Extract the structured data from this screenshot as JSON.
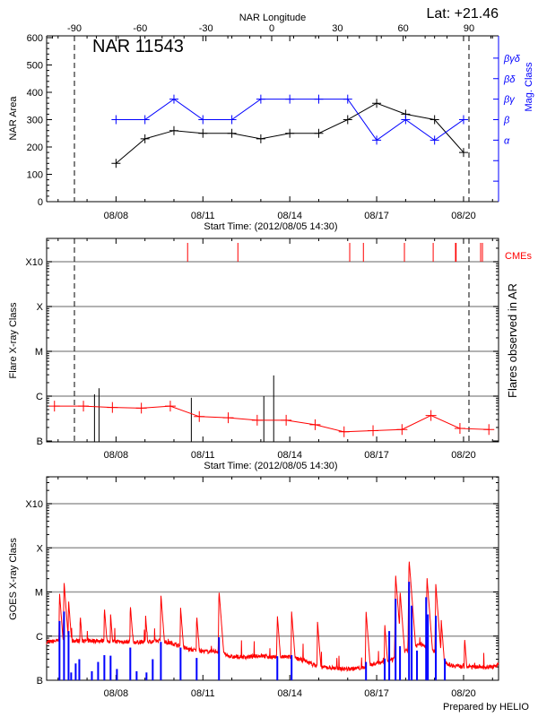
{
  "header": {
    "lat_label": "Lat: +21.46",
    "footer": "Prepared by HELIO"
  },
  "colors": {
    "area": "#000000",
    "mag_class": "#0000ff",
    "flares": "#ff0000",
    "cme": "#ff0000",
    "goes_long": "#ff0000",
    "goes_short": "#0000ff",
    "grid": "#999999"
  },
  "chart_data": [
    {
      "type": "line",
      "title": "NAR 11543",
      "xlabel": "Start Time: (2012/08/05 14:30)",
      "ylabel": "NAR Area",
      "y2label": "Mag. Class",
      "top_axis_label": "NAR Longitude",
      "top_axis_ticks": [
        "-90",
        "-60",
        "-30",
        "0",
        "30",
        "60",
        "90"
      ],
      "limb_longitudes": [
        -90,
        90
      ],
      "xlim": [
        "2012-08-05T14:30",
        "2012-08-21T05:00"
      ],
      "x_ticks": [
        "08/08",
        "08/11",
        "08/14",
        "08/17",
        "08/20"
      ],
      "x_tick_dates": [
        "2012-08-08T00:00",
        "2012-08-11T00:00",
        "2012-08-14T00:00",
        "2012-08-17T00:00",
        "2012-08-20T00:00"
      ],
      "ylim": [
        0,
        600
      ],
      "y_ticks": [
        "0",
        "100",
        "200",
        "300",
        "400",
        "500",
        "600"
      ],
      "y2_levels": [
        "",
        "",
        "α",
        "β",
        "βγ",
        "βδ",
        "βγδ"
      ],
      "x": [
        "2012-08-08T00:00",
        "2012-08-09T00:00",
        "2012-08-10T00:00",
        "2012-08-11T00:00",
        "2012-08-12T00:00",
        "2012-08-13T00:00",
        "2012-08-14T00:00",
        "2012-08-15T00:00",
        "2012-08-16T00:00",
        "2012-08-17T00:00",
        "2012-08-18T00:00",
        "2012-08-19T00:00",
        "2012-08-20T00:00"
      ],
      "series": [
        {
          "axis": "left",
          "color": "#000000",
          "values": [
            140,
            230,
            260,
            250,
            250,
            230,
            250,
            250,
            300,
            360,
            320,
            300,
            180
          ]
        },
        {
          "axis": "right",
          "color": "#0000ff",
          "values": [
            "β",
            "β",
            "βγ",
            "β",
            "β",
            "βγ",
            "βγ",
            "βγ",
            "βγ",
            "α",
            "β",
            "α",
            "β"
          ]
        }
      ],
      "grid": false
    },
    {
      "type": "line",
      "xlabel": "Start Time: (2012/08/05 14:30)",
      "ylabel": "Flare X-ray Class",
      "y2label": "Flares observed in AR",
      "cme_label": "CMEs",
      "yscale": "log",
      "xlim": [
        "2012-08-05T14:30",
        "2012-08-21T05:00"
      ],
      "x_ticks": [
        "08/08",
        "08/11",
        "08/14",
        "08/17",
        "08/20"
      ],
      "y_ticks": [
        "B",
        "C",
        "M",
        "X",
        "X10"
      ],
      "grid": true,
      "flare_class_series": {
        "x": [
          "2012-08-05T21:00",
          "2012-08-06T21:00",
          "2012-08-07T21:00",
          "2012-08-08T21:00",
          "2012-08-09T21:00",
          "2012-08-10T21:00",
          "2012-08-11T21:00",
          "2012-08-12T21:00",
          "2012-08-13T21:00",
          "2012-08-14T21:00",
          "2012-08-15T21:00",
          "2012-08-16T21:00",
          "2012-08-17T21:00",
          "2012-08-18T21:00",
          "2012-08-19T21:00",
          "2012-08-20T21:00"
        ],
        "values": [
          "B6.0",
          "B6.0",
          "B5.6",
          "B5.4",
          "B6.0",
          "B3.5",
          "B3.3",
          "B2.9",
          "B2.9",
          "B2.3",
          "B1.6",
          "B1.7",
          "B1.8",
          "B3.7",
          "B1.9",
          "B1.8"
        ]
      },
      "observed_flares": [
        {
          "time": "2012-08-07T06:10",
          "class": "C1.1"
        },
        {
          "time": "2012-08-07T09:55",
          "class": "C1.5"
        },
        {
          "time": "2012-08-10T14:25",
          "class": "B9.2"
        },
        {
          "time": "2012-08-13T02:30",
          "class": "C1.0"
        },
        {
          "time": "2012-08-13T10:40",
          "class": "C2.9"
        }
      ],
      "cme_times": [
        "2012-08-10T11:20",
        "2012-08-12T05:00",
        "2012-08-16T01:40",
        "2012-08-16T13:00",
        "2012-08-17T23:00",
        "2012-08-18T22:50",
        "2012-08-19T17:20",
        "2012-08-19T17:50",
        "2012-08-20T14:10",
        "2012-08-20T15:40"
      ]
    },
    {
      "type": "line",
      "ylabel": "GOES X-ray Class",
      "yscale": "log",
      "xlim": [
        "2012-08-05T14:30",
        "2012-08-21T05:00"
      ],
      "x_ticks": [
        "08/08",
        "08/11",
        "08/14",
        "08/17",
        "08/20"
      ],
      "y_ticks": [
        "B",
        "C",
        "M",
        "X",
        "X10"
      ],
      "grid": true,
      "long_channel_background": {
        "x": [
          "2012-08-05T14:30",
          "2012-08-06T00:00",
          "2012-08-06T12:00",
          "2012-08-07T00:00",
          "2012-08-07T12:00",
          "2012-08-08T00:00",
          "2012-08-08T12:00",
          "2012-08-09T00:00",
          "2012-08-09T12:00",
          "2012-08-10T00:00",
          "2012-08-10T12:00",
          "2012-08-11T00:00",
          "2012-08-11T12:00",
          "2012-08-12T00:00",
          "2012-08-12T12:00",
          "2012-08-13T00:00",
          "2012-08-13T12:00",
          "2012-08-14T00:00",
          "2012-08-14T12:00",
          "2012-08-15T00:00",
          "2012-08-15T12:00",
          "2012-08-16T00:00",
          "2012-08-16T12:00",
          "2012-08-17T00:00",
          "2012-08-17T12:00",
          "2012-08-18T00:00",
          "2012-08-18T12:00",
          "2012-08-19T00:00",
          "2012-08-19T12:00",
          "2012-08-20T00:00",
          "2012-08-20T12:00",
          "2012-08-21T00:00",
          "2012-08-21T05:00"
        ],
        "values": [
          "B6.5",
          "B7",
          "B7",
          "B7",
          "B7",
          "B6.8",
          "B6.5",
          "B6.5",
          "B7",
          "B6",
          "B4.5",
          "B4",
          "B4",
          "B3",
          "B3",
          "B3.2",
          "B3",
          "B3",
          "B2.5",
          "B1.8",
          "B1.7",
          "B1.6",
          "B1.7",
          "B2.2",
          "B2.5",
          "B4",
          "B6",
          "B4",
          "B2",
          "B1.8",
          "B1.8",
          "B1.8",
          "B2"
        ]
      },
      "long_channel_peaks": [
        {
          "time": "2012-08-06T01:10",
          "class": "C9.7"
        },
        {
          "time": "2012-08-06T04:55",
          "class": "M1.7"
        },
        {
          "time": "2012-08-06T08:40",
          "class": "C6.5"
        },
        {
          "time": "2012-08-06T18:20",
          "class": "C3.0"
        },
        {
          "time": "2012-08-07T14:20",
          "class": "C4.6"
        },
        {
          "time": "2012-08-07T19:30",
          "class": "C3.1"
        },
        {
          "time": "2012-08-08T11:50",
          "class": "C5.2"
        },
        {
          "time": "2012-08-09T00:30",
          "class": "C2.9"
        },
        {
          "time": "2012-08-09T13:10",
          "class": "C8.8"
        },
        {
          "time": "2012-08-10T05:30",
          "class": "C4.4"
        },
        {
          "time": "2012-08-10T18:50",
          "class": "C3.0"
        },
        {
          "time": "2012-08-11T13:20",
          "class": "M1.1"
        },
        {
          "time": "2012-08-13T13:40",
          "class": "C3.0"
        },
        {
          "time": "2012-08-14T01:30",
          "class": "C3.6"
        },
        {
          "time": "2012-08-14T23:00",
          "class": "C2.1"
        },
        {
          "time": "2012-08-16T15:10",
          "class": "C3.8"
        },
        {
          "time": "2012-08-17T06:40",
          "class": "C1.9"
        },
        {
          "time": "2012-08-17T15:40",
          "class": "M2.5"
        },
        {
          "time": "2012-08-17T19:20",
          "class": "M1.1"
        },
        {
          "time": "2012-08-18T02:50",
          "class": "M5.6"
        },
        {
          "time": "2012-08-18T17:40",
          "class": "M2.2"
        },
        {
          "time": "2012-08-19T01:00",
          "class": "M1.5"
        },
        {
          "time": "2012-08-19T05:30",
          "class": "C2.3"
        },
        {
          "time": "2012-08-20T00:50",
          "class": "B9.4"
        }
      ],
      "short_channel_peaks": [
        {
          "time": "2012-08-06T01:10",
          "class": "C2.2"
        },
        {
          "time": "2012-08-06T04:55",
          "class": "C3.6"
        },
        {
          "time": "2012-08-06T08:40",
          "class": "C1.3"
        },
        {
          "time": "2012-08-06T10:50",
          "class": "B1.5"
        },
        {
          "time": "2012-08-06T14:35",
          "class": "B2.4"
        },
        {
          "time": "2012-08-06T17:35",
          "class": "B3.0"
        },
        {
          "time": "2012-08-07T04:00",
          "class": "B1.6"
        },
        {
          "time": "2012-08-07T09:10",
          "class": "B2.6"
        },
        {
          "time": "2012-08-07T14:20",
          "class": "B3.7"
        },
        {
          "time": "2012-08-07T19:30",
          "class": "B3.6"
        },
        {
          "time": "2012-08-08T00:45",
          "class": "B1.8"
        },
        {
          "time": "2012-08-08T11:50",
          "class": "B5.5"
        },
        {
          "time": "2012-08-08T17:05",
          "class": "B1.6"
        },
        {
          "time": "2012-08-09T01:15",
          "class": "B1.5"
        },
        {
          "time": "2012-08-09T06:25",
          "class": "B3.0"
        },
        {
          "time": "2012-08-09T13:10",
          "class": "B7.4"
        },
        {
          "time": "2012-08-10T05:30",
          "class": "B5.5"
        },
        {
          "time": "2012-08-10T18:50",
          "class": "B3.2"
        },
        {
          "time": "2012-08-11T13:20",
          "class": "B9.4"
        },
        {
          "time": "2012-08-13T13:40",
          "class": "B3.5"
        },
        {
          "time": "2012-08-14T01:30",
          "class": "B3.7"
        },
        {
          "time": "2012-08-16T15:10",
          "class": "B2.6"
        },
        {
          "time": "2012-08-17T06:40",
          "class": "B3.1"
        },
        {
          "time": "2012-08-17T10:25",
          "class": "C1.3"
        },
        {
          "time": "2012-08-17T15:40",
          "class": "C7.0"
        },
        {
          "time": "2012-08-17T19:20",
          "class": "B5.9"
        },
        {
          "time": "2012-08-18T02:50",
          "class": "M1.7"
        },
        {
          "time": "2012-08-18T05:00",
          "class": "C4.9"
        },
        {
          "time": "2012-08-18T09:25",
          "class": "B4.7"
        },
        {
          "time": "2012-08-18T17:00",
          "class": "C7.6"
        },
        {
          "time": "2012-08-18T18:25",
          "class": "C3.1"
        },
        {
          "time": "2012-08-19T01:00",
          "class": "C2.9"
        },
        {
          "time": "2012-08-19T08:30",
          "class": "B3.1"
        }
      ]
    }
  ]
}
